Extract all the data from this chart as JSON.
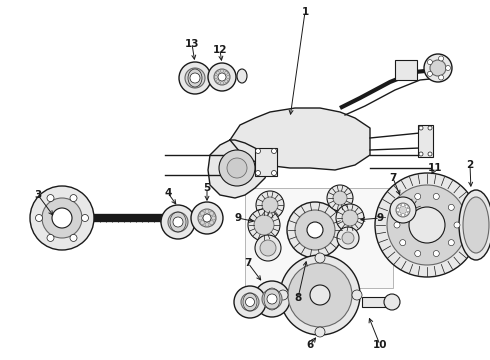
{
  "bg": "#ffffff",
  "fg": "#1a1a1a",
  "mid": "#666666",
  "light_gray": "#cccccc",
  "fill_gray": "#e8e8e8",
  "fill_mid": "#d4d4d4",
  "fig_w": 4.9,
  "fig_h": 3.6,
  "dpi": 100
}
